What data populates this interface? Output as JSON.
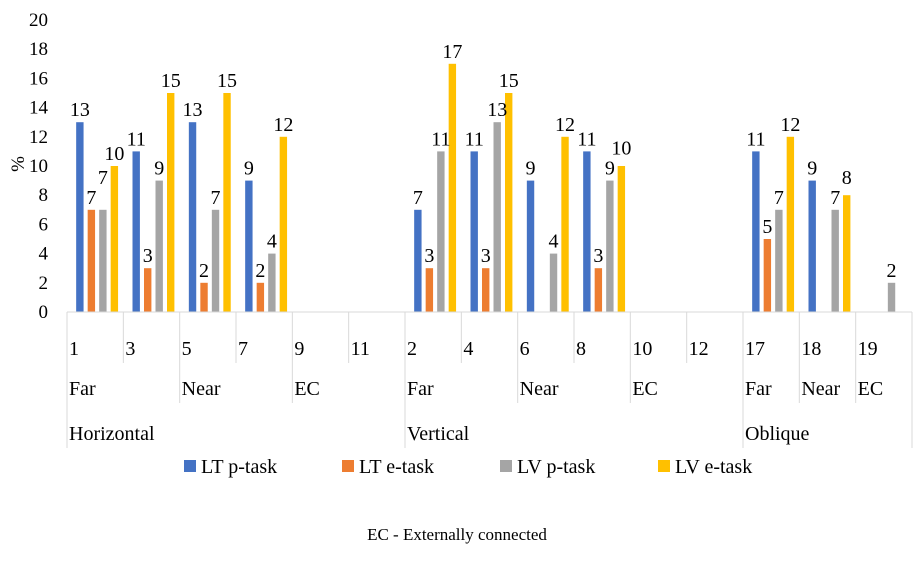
{
  "chart_data": {
    "type": "bar",
    "ylabel": "%",
    "ylim": [
      0,
      20
    ],
    "ytick_step": 2,
    "grid": false,
    "legend_position": "bottom",
    "categories": [
      "1",
      "3",
      "5",
      "7",
      "9",
      "11",
      "2",
      "4",
      "6",
      "8",
      "10",
      "12",
      "17",
      "18",
      "19"
    ],
    "groups": [
      {
        "name": "Far",
        "parent": "Horizontal",
        "count": 2
      },
      {
        "name": "Near",
        "parent": "Horizontal",
        "count": 2
      },
      {
        "name": "EC",
        "parent": "Horizontal",
        "count": 2
      },
      {
        "name": "Far",
        "parent": "Vertical",
        "count": 2
      },
      {
        "name": "Near",
        "parent": "Vertical",
        "count": 2
      },
      {
        "name": "EC",
        "parent": "Vertical",
        "count": 2
      },
      {
        "name": "Far",
        "parent": "Oblique",
        "count": 1
      },
      {
        "name": "Near",
        "parent": "Oblique",
        "count": 1
      },
      {
        "name": "EC",
        "parent": "Oblique",
        "count": 1
      }
    ],
    "supergroups": [
      {
        "name": "Horizontal",
        "count": 6
      },
      {
        "name": "Vertical",
        "count": 6
      },
      {
        "name": "Oblique",
        "count": 3
      }
    ],
    "series": [
      {
        "name": "LT p-task",
        "color": "#4472C4",
        "values": [
          13,
          11,
          13,
          9,
          null,
          null,
          7,
          11,
          9,
          11,
          null,
          null,
          11,
          9,
          null
        ]
      },
      {
        "name": "LT e-task",
        "color": "#ED7D31",
        "values": [
          7,
          3,
          2,
          2,
          null,
          null,
          3,
          3,
          null,
          3,
          null,
          null,
          5,
          null,
          null
        ]
      },
      {
        "name": "LV p-task",
        "color": "#A5A5A5",
        "values": [
          7,
          9,
          7,
          4,
          null,
          null,
          11,
          13,
          4,
          9,
          null,
          null,
          7,
          7,
          2
        ]
      },
      {
        "name": "LV e-task",
        "color": "#FFC000",
        "values": [
          10,
          15,
          15,
          12,
          null,
          null,
          17,
          15,
          12,
          10,
          null,
          null,
          12,
          8,
          null
        ]
      }
    ]
  },
  "footnote": "EC - Externally connected"
}
